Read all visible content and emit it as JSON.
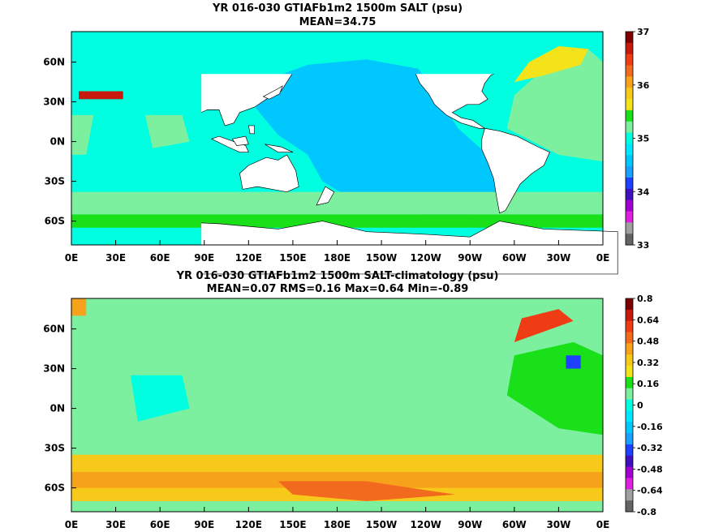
{
  "panels": [
    {
      "title": "YR 016-030 GTIAFb1m2 1500m SALT (psu)",
      "stats": "MEAN=34.75",
      "lat_labels": [
        "60N",
        "30N",
        "0N",
        "30S",
        "60S"
      ],
      "lon_labels": [
        "0E",
        "30E",
        "60E",
        "90E",
        "120E",
        "150E",
        "180E",
        "150W",
        "120W",
        "90W",
        "60W",
        "30W",
        "0E"
      ],
      "colorbar": {
        "tick_labels": [
          "37",
          "36",
          "35",
          "34",
          "33"
        ],
        "colors": [
          "#7f0000",
          "#c81a0c",
          "#f03c14",
          "#f26a1e",
          "#f7a21b",
          "#f7c91a",
          "#f4e21a",
          "#19e019",
          "#7df0a0",
          "#00ffe0",
          "#00e8ff",
          "#00c8ff",
          "#1aa0ff",
          "#2040ff",
          "#4010c0",
          "#a000d0",
          "#e020e0",
          "#a0a0a0",
          "#646464"
        ]
      },
      "field": "absolute-salinity"
    },
    {
      "title": "YR 016-030 GTIAFb1m2 1500m SALT-climatology (psu)",
      "stats": "MEAN=0.07   RMS=0.16   Max=0.64   Min=-0.89",
      "lat_labels": [
        "60N",
        "30N",
        "0N",
        "30S",
        "60S"
      ],
      "lon_labels": [
        "0E",
        "30E",
        "60E",
        "90E",
        "120E",
        "150E",
        "180E",
        "150W",
        "120W",
        "90W",
        "60W",
        "30W",
        "0E"
      ],
      "colorbar": {
        "tick_labels": [
          "0.8",
          "0.64",
          "0.48",
          "0.32",
          "0.16",
          "0",
          "-0.16",
          "-0.32",
          "-0.48",
          "-0.64",
          "-0.8"
        ],
        "colors": [
          "#7f0000",
          "#c81a0c",
          "#f03c14",
          "#f26a1e",
          "#f7a21b",
          "#f7c91a",
          "#f4e21a",
          "#19e019",
          "#7df0a0",
          "#00ffe0",
          "#00e8ff",
          "#00c8ff",
          "#1aa0ff",
          "#2040ff",
          "#4010c0",
          "#a000d0",
          "#e020e0",
          "#a0a0a0",
          "#646464"
        ]
      },
      "field": "salinity-anomaly"
    }
  ]
}
